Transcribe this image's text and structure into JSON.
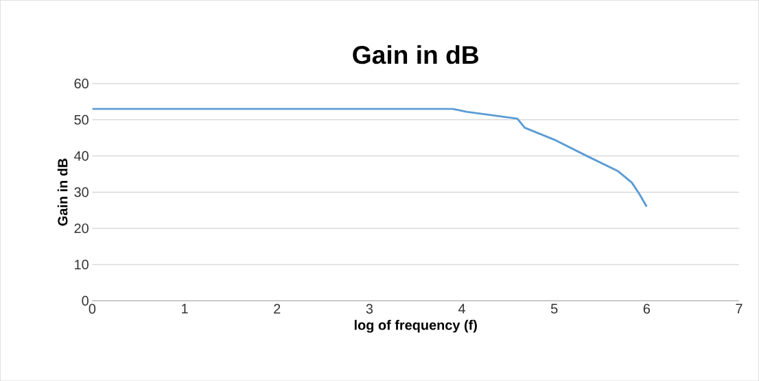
{
  "chart_data": {
    "type": "line",
    "title": "Gain in dB",
    "xlabel": "log of frequency (f)",
    "ylabel": "Gain in dB",
    "series": [
      {
        "color": "#5b9bd5",
        "x": [
          0,
          1,
          2,
          3,
          3.9,
          4.05,
          4.6,
          4.68,
          5.0,
          5.36,
          5.69,
          5.84,
          5.92,
          6.0
        ],
        "values": [
          53,
          53,
          53,
          53,
          53,
          52.2,
          50.3,
          47.8,
          44.5,
          39.9,
          35.8,
          32.6,
          29.5,
          26
        ]
      }
    ],
    "xlim": [
      0,
      7
    ],
    "xticks": [
      0,
      1,
      2,
      3,
      4,
      5,
      6,
      7
    ],
    "ylim": [
      0,
      60
    ],
    "yticks": [
      0,
      10,
      20,
      30,
      40,
      50,
      60
    ],
    "grid": "y",
    "marker": "none",
    "line_style": "solid"
  }
}
